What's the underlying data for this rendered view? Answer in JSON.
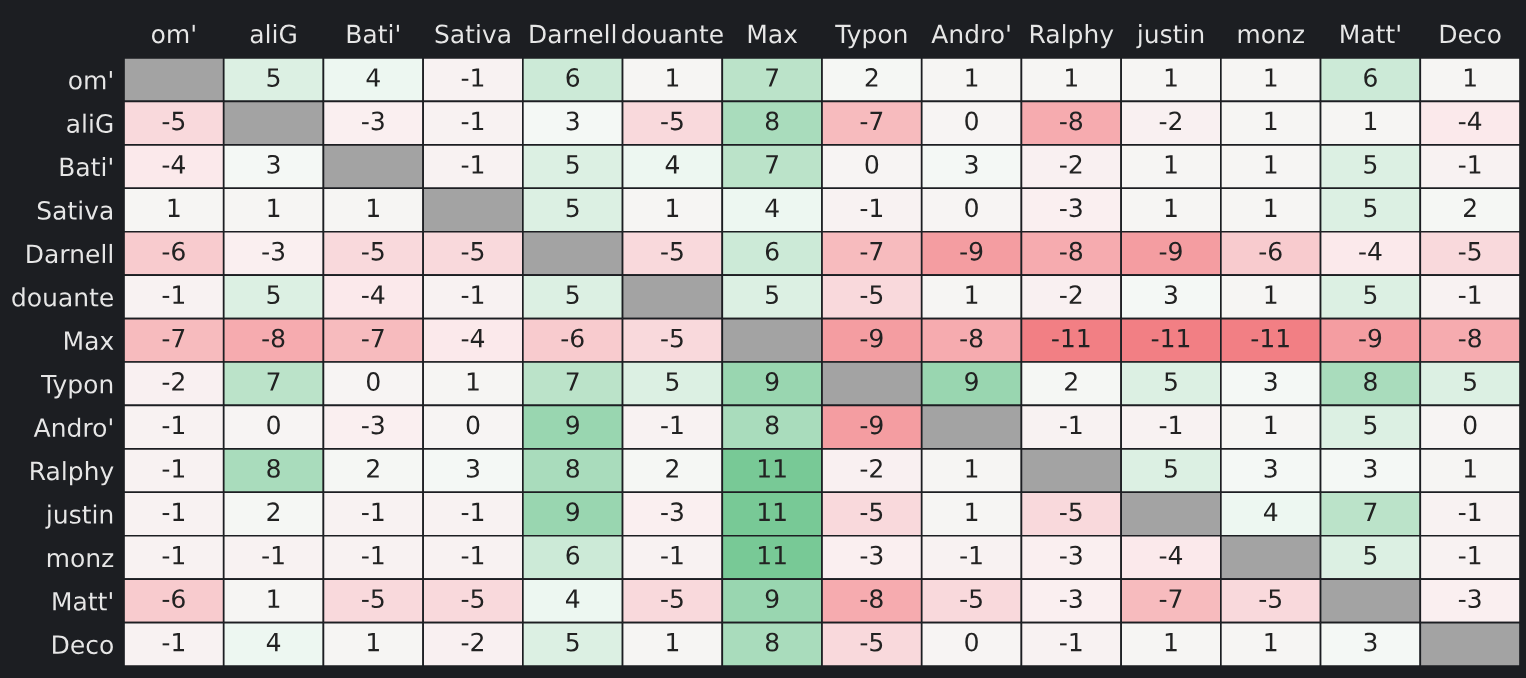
{
  "chart_data": {
    "type": "heatmap",
    "categories": [
      "om'",
      "aliG",
      "Bati'",
      "Sativa",
      "Darnell",
      "douante",
      "Max",
      "Typon",
      "Andro'",
      "Ralphy",
      "justin",
      "monz",
      "Matt'",
      "Deco"
    ],
    "y_categories": [
      "om'",
      "aliG",
      "Bati'",
      "Sativa",
      "Darnell",
      "douante",
      "Max",
      "Typon",
      "Andro'",
      "Ralphy",
      "justin",
      "monz",
      "Matt'",
      "Deco"
    ],
    "cells": [
      [
        null,
        5,
        4,
        -1,
        6,
        1,
        7,
        2,
        1,
        1,
        1,
        1,
        6,
        1
      ],
      [
        -5,
        null,
        -3,
        -1,
        3,
        -5,
        8,
        -7,
        0,
        -8,
        -2,
        1,
        1,
        -4
      ],
      [
        -4,
        3,
        null,
        -1,
        5,
        4,
        7,
        0,
        3,
        -2,
        1,
        1,
        5,
        -1
      ],
      [
        1,
        1,
        1,
        null,
        5,
        1,
        4,
        -1,
        0,
        -3,
        1,
        1,
        5,
        2
      ],
      [
        -6,
        -3,
        -5,
        -5,
        null,
        -5,
        6,
        -7,
        -9,
        -8,
        -9,
        -6,
        -4,
        -5
      ],
      [
        -1,
        5,
        -4,
        -1,
        5,
        null,
        5,
        -5,
        1,
        -2,
        3,
        1,
        5,
        -1
      ],
      [
        -7,
        -8,
        -7,
        -4,
        -6,
        -5,
        null,
        -9,
        -8,
        -11,
        -11,
        -11,
        -9,
        -8
      ],
      [
        -2,
        7,
        0,
        1,
        7,
        5,
        9,
        null,
        9,
        2,
        5,
        3,
        8,
        5
      ],
      [
        -1,
        0,
        -3,
        0,
        9,
        -1,
        8,
        -9,
        null,
        -1,
        -1,
        1,
        5,
        0
      ],
      [
        -1,
        8,
        2,
        3,
        8,
        2,
        11,
        -2,
        1,
        null,
        5,
        3,
        3,
        1
      ],
      [
        -1,
        2,
        -1,
        -1,
        9,
        -3,
        11,
        -5,
        1,
        -5,
        null,
        4,
        7,
        -1
      ],
      [
        -1,
        -1,
        -1,
        -1,
        6,
        -1,
        11,
        -3,
        -1,
        -3,
        -4,
        null,
        5,
        -1
      ],
      [
        -6,
        1,
        -5,
        -5,
        4,
        -5,
        9,
        -8,
        -5,
        -3,
        -7,
        -5,
        null,
        -3
      ],
      [
        -1,
        4,
        1,
        -2,
        5,
        1,
        8,
        -5,
        0,
        -1,
        1,
        1,
        3,
        null
      ]
    ],
    "data_labels": true
  }
}
